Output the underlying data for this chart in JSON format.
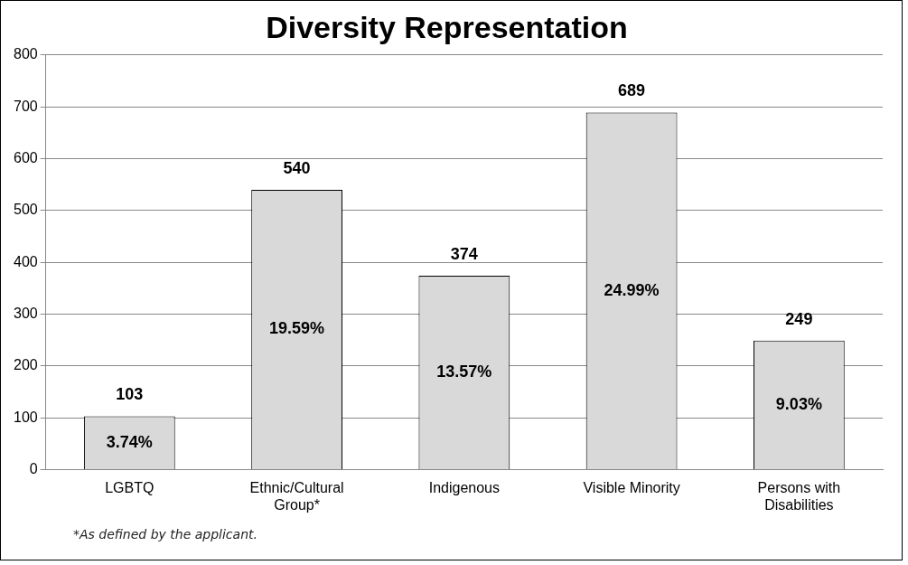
{
  "chart_data": {
    "type": "bar",
    "title": "Diversity Representation",
    "categories": [
      "LGBTQ",
      "Ethnic/Cultural Group*",
      "Indigenous",
      "Visible Minority",
      "Persons with Disabilities"
    ],
    "values": [
      103,
      540,
      374,
      689,
      249
    ],
    "color": "#d9d9d9",
    "ylim": [
      0,
      800
    ],
    "yticks": [
      0,
      100,
      200,
      300,
      400,
      500,
      600,
      700,
      800
    ],
    "grid": "y",
    "data_labels": true,
    "annotations": [
      "3.74%",
      "19.59%",
      "13.57%",
      "24.99%",
      "9.03%",
      "*As defined by the applicant."
    ]
  }
}
